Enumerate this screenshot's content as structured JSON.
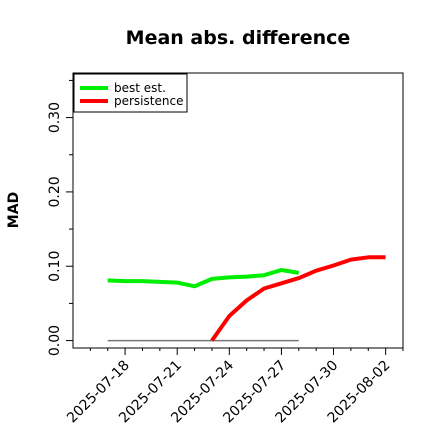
{
  "chart_data": {
    "type": "line",
    "title": "Mean abs. difference",
    "xlabel": "",
    "ylabel": "MAD",
    "xlim": [
      "2025-07-15",
      "2025-08-03"
    ],
    "ylim": [
      -0.01,
      0.36
    ],
    "yticks": [
      {
        "value": 0.0,
        "label": "0.00"
      },
      {
        "value": 0.1,
        "label": "0.10"
      },
      {
        "value": 0.2,
        "label": "0.20"
      },
      {
        "value": 0.3,
        "label": "0.30"
      }
    ],
    "xticks": [
      {
        "value": "2025-07-18",
        "label": "2025-07-18"
      },
      {
        "value": "2025-07-21",
        "label": "2025-07-21"
      },
      {
        "value": "2025-07-24",
        "label": "2025-07-24"
      },
      {
        "value": "2025-07-27",
        "label": "2025-07-27"
      },
      {
        "value": "2025-07-30",
        "label": "2025-07-30"
      },
      {
        "value": "2025-08-02",
        "label": "2025-08-02"
      }
    ],
    "grid": false,
    "legend_position": "top-left",
    "series": [
      {
        "name": "best est.",
        "color": "#00ee00",
        "x": [
          "2025-07-17",
          "2025-07-18",
          "2025-07-19",
          "2025-07-20",
          "2025-07-21",
          "2025-07-22",
          "2025-07-23",
          "2025-07-24",
          "2025-07-25",
          "2025-07-26",
          "2025-07-27",
          "2025-07-28"
        ],
        "y": [
          0.081,
          0.08,
          0.08,
          0.079,
          0.078,
          0.073,
          0.083,
          0.085,
          0.086,
          0.088,
          0.095,
          0.091
        ]
      },
      {
        "name": "persistence",
        "color": "#ff0000",
        "x": [
          "2025-07-23",
          "2025-07-24",
          "2025-07-25",
          "2025-07-26",
          "2025-07-27",
          "2025-07-28",
          "2025-07-29",
          "2025-07-30",
          "2025-07-31",
          "2025-08-01",
          "2025-08-02"
        ],
        "y": [
          0.0,
          0.033,
          0.054,
          0.07,
          0.077,
          0.084,
          0.094,
          0.101,
          0.109,
          0.112,
          0.112
        ]
      },
      {
        "name": "",
        "color": "#777777",
        "x": [
          "2025-07-17",
          "2025-07-28"
        ],
        "y": [
          0.0,
          0.0
        ]
      }
    ]
  }
}
